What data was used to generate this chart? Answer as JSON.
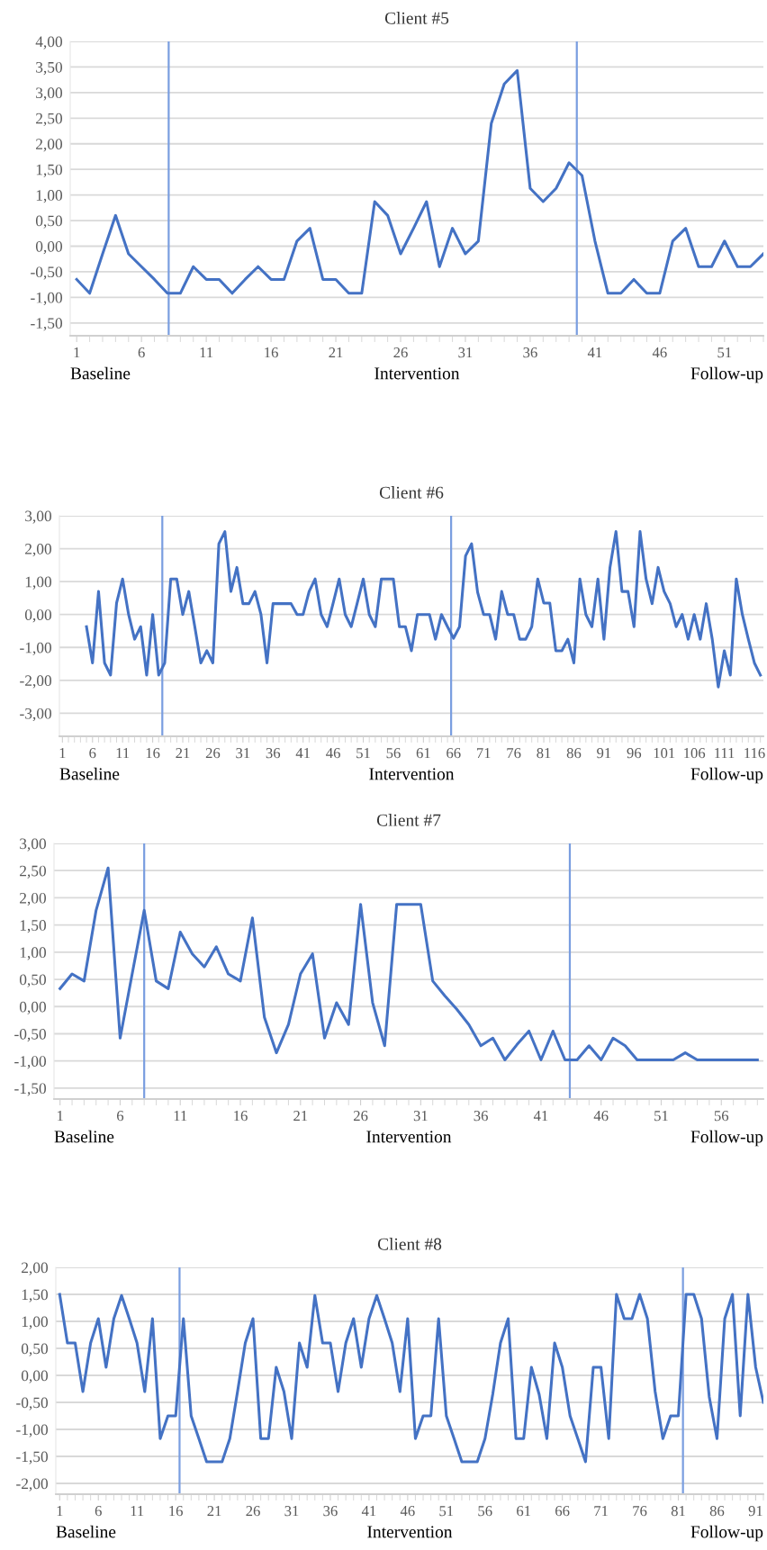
{
  "chart_data": [
    {
      "type": "line",
      "title": "Client #5",
      "color": "#4472c4",
      "grid": "y",
      "x": [
        1,
        2,
        3,
        4,
        5,
        6,
        7,
        8,
        9,
        10,
        11,
        12,
        13,
        14,
        15,
        16,
        17,
        18,
        19,
        20,
        21,
        22,
        23,
        24,
        25,
        26,
        27,
        28,
        29,
        30,
        31,
        32,
        33,
        34,
        35,
        36,
        37,
        38,
        39,
        40,
        41,
        42,
        43,
        44,
        45,
        46,
        47,
        48,
        49,
        50,
        51,
        52,
        53,
        54
      ],
      "values": [
        -0.65,
        -0.92,
        -0.15,
        0.6,
        -0.15,
        -0.4,
        -0.65,
        -0.92,
        -0.92,
        -0.4,
        -0.65,
        -0.65,
        -0.92,
        -0.65,
        -0.4,
        -0.65,
        -0.65,
        0.1,
        0.35,
        -0.65,
        -0.65,
        -0.92,
        -0.92,
        0.87,
        0.6,
        -0.15,
        0.35,
        0.87,
        -0.4,
        0.35,
        -0.15,
        0.1,
        2.4,
        3.17,
        3.43,
        1.13,
        0.87,
        1.13,
        1.63,
        1.38,
        0.1,
        -0.92,
        -0.92,
        -0.65,
        -0.92,
        -0.92,
        0.1,
        0.35,
        -0.4,
        -0.4,
        0.1,
        -0.4,
        -0.4,
        -0.15
      ],
      "xlim": [
        0.5,
        54
      ],
      "xticks": [
        1,
        6,
        11,
        16,
        21,
        26,
        31,
        36,
        41,
        46,
        51
      ],
      "ylim": [
        -1.75,
        4.0
      ],
      "yticks": [
        {
          "value": -1.5,
          "label": "-1,50"
        },
        {
          "value": -1.0,
          "label": "-1,00"
        },
        {
          "value": -0.5,
          "label": "-0,50"
        },
        {
          "value": 0,
          "label": "0,00"
        },
        {
          "value": 0.5,
          "label": "0,50"
        },
        {
          "value": 1.0,
          "label": "1,00"
        },
        {
          "value": 1.5,
          "label": "1,50"
        },
        {
          "value": 2.0,
          "label": "2,00"
        },
        {
          "value": 2.5,
          "label": "2,50"
        },
        {
          "value": 3.0,
          "label": "3,00"
        },
        {
          "value": 3.5,
          "label": "3,50"
        },
        {
          "value": 4.0,
          "label": "4,00"
        }
      ],
      "ref_lines": [
        {
          "axis": "x",
          "value": 8.1,
          "color": "#7a9ee0"
        },
        {
          "axis": "x",
          "value": 39.6,
          "color": "#7a9ee0"
        }
      ],
      "annotations": [
        "Baseline",
        "Intervention",
        "Follow-up"
      ]
    },
    {
      "type": "line",
      "title": "Client #6",
      "color": "#4472c4",
      "grid": "y",
      "x": [
        5,
        6,
        7,
        8,
        9,
        10,
        11,
        12,
        13,
        14,
        15,
        16,
        17,
        18,
        19,
        20,
        21,
        22,
        23,
        24,
        25,
        26,
        27,
        28,
        29,
        30,
        31,
        32,
        33,
        34,
        35,
        36,
        37,
        38,
        39,
        40,
        41,
        42,
        43,
        44,
        45,
        46,
        47,
        48,
        49,
        50,
        51,
        52,
        53,
        54,
        55,
        56,
        57,
        58,
        59,
        60,
        61,
        62,
        63,
        64,
        65,
        66,
        67,
        68,
        69,
        70,
        71,
        72,
        73,
        74,
        75,
        76,
        77,
        78,
        79,
        80,
        81,
        82,
        83,
        84,
        85,
        86,
        87,
        88,
        89,
        90,
        91,
        92,
        93,
        94,
        95,
        96,
        97,
        98,
        99,
        100,
        101,
        102,
        103,
        104,
        105,
        106,
        107,
        108,
        109,
        110,
        111,
        112,
        113,
        114,
        115,
        116,
        117
      ],
      "values": [
        -0.37,
        -1.47,
        0.7,
        -1.47,
        -1.84,
        0.35,
        1.08,
        0.0,
        -0.75,
        -0.37,
        -1.84,
        0.0,
        -1.84,
        -1.47,
        1.08,
        1.08,
        0.0,
        0.7,
        -0.37,
        -1.47,
        -1.1,
        -1.47,
        2.15,
        2.52,
        0.7,
        1.43,
        0.33,
        0.33,
        0.7,
        0.0,
        -1.47,
        0.33,
        0.33,
        0.33,
        0.33,
        0.0,
        0.0,
        0.7,
        1.08,
        0.0,
        -0.37,
        0.35,
        1.08,
        0.0,
        -0.37,
        0.35,
        1.08,
        0.0,
        -0.37,
        1.08,
        1.08,
        1.08,
        -0.37,
        -0.37,
        -1.1,
        0.0,
        0.0,
        0.0,
        -0.75,
        0.0,
        -0.37,
        -0.72,
        -0.37,
        1.78,
        2.15,
        0.68,
        0.0,
        0.0,
        -0.75,
        0.7,
        0.0,
        0.0,
        -0.75,
        -0.75,
        -0.37,
        1.08,
        0.35,
        0.35,
        -1.1,
        -1.1,
        -0.75,
        -1.47,
        1.08,
        0.0,
        -0.37,
        1.08,
        -0.75,
        1.43,
        2.52,
        0.7,
        0.7,
        -0.37,
        2.52,
        1.08,
        0.33,
        1.43,
        0.7,
        0.33,
        -0.37,
        0.0,
        -0.75,
        0.0,
        -0.75,
        0.33,
        -0.75,
        -2.2,
        -1.1,
        -1.84,
        1.08,
        0.0,
        -0.75,
        -1.47,
        -1.84
      ],
      "xlim": [
        0.5,
        117.5
      ],
      "xticks": [
        1,
        6,
        11,
        16,
        21,
        26,
        31,
        36,
        41,
        46,
        51,
        56,
        61,
        66,
        71,
        76,
        81,
        86,
        91,
        96,
        101,
        106,
        111,
        116
      ],
      "ylim": [
        -3.7,
        3.0
      ],
      "yticks": [
        {
          "value": -3,
          "label": "-3,00"
        },
        {
          "value": -2,
          "label": "-2,00"
        },
        {
          "value": -1,
          "label": "-1,00"
        },
        {
          "value": 0,
          "label": "0,00"
        },
        {
          "value": 1,
          "label": "1,00"
        },
        {
          "value": 2,
          "label": "2,00"
        },
        {
          "value": 3,
          "label": "3,00"
        }
      ],
      "ref_lines": [
        {
          "axis": "x",
          "value": 17.6,
          "color": "#7a9ee0"
        },
        {
          "axis": "x",
          "value": 65.6,
          "color": "#7a9ee0"
        }
      ],
      "annotations": [
        "Baseline",
        "Intervention",
        "Follow-up"
      ]
    },
    {
      "type": "line",
      "title": "Client #7",
      "color": "#4472c4",
      "grid": "y",
      "x": [
        1,
        2,
        3,
        4,
        5,
        6,
        7,
        8,
        9,
        10,
        11,
        12,
        13,
        14,
        15,
        16,
        17,
        18,
        19,
        20,
        21,
        22,
        23,
        24,
        25,
        26,
        27,
        28,
        29,
        30,
        31,
        32,
        33,
        34,
        35,
        36,
        37,
        38,
        39,
        40,
        41,
        42,
        43,
        44,
        45,
        46,
        47,
        48,
        49,
        50,
        51,
        52,
        53,
        54,
        55,
        56,
        57,
        58,
        59
      ],
      "values": [
        0.33,
        0.6,
        0.47,
        1.77,
        2.55,
        -0.58,
        0.6,
        1.77,
        0.47,
        0.33,
        1.37,
        0.97,
        0.73,
        1.1,
        0.6,
        0.47,
        1.63,
        -0.2,
        -0.85,
        -0.33,
        0.6,
        0.97,
        -0.58,
        0.07,
        -0.33,
        1.88,
        0.07,
        -0.72,
        1.88,
        1.88,
        1.88,
        0.47,
        0.2,
        -0.05,
        -0.33,
        -0.72,
        -0.58,
        -0.98,
        -0.7,
        -0.45,
        -0.98,
        -0.45,
        -0.98,
        -0.98,
        -0.72,
        -0.98,
        -0.58,
        -0.72,
        -0.98,
        -0.98,
        -0.98,
        -0.98,
        -0.85,
        -0.98,
        -0.98,
        -0.98,
        -0.98,
        -0.98,
        -0.98
      ],
      "xlim": [
        0.5,
        59.5
      ],
      "xticks": [
        1,
        6,
        11,
        16,
        21,
        26,
        31,
        36,
        41,
        46,
        51,
        56
      ],
      "ylim": [
        -1.7,
        3.0
      ],
      "yticks": [
        {
          "value": -1.5,
          "label": "-1,50"
        },
        {
          "value": -1.0,
          "label": "-1,00"
        },
        {
          "value": -0.5,
          "label": "-0,50"
        },
        {
          "value": 0,
          "label": "0,00"
        },
        {
          "value": 0.5,
          "label": "0,50"
        },
        {
          "value": 1.0,
          "label": "1,00"
        },
        {
          "value": 1.5,
          "label": "1,50"
        },
        {
          "value": 2.0,
          "label": "2,00"
        },
        {
          "value": 2.5,
          "label": "2,50"
        },
        {
          "value": 3.0,
          "label": "3,00"
        }
      ],
      "ref_lines": [
        {
          "axis": "x",
          "value": 8.0,
          "color": "#7a9ee0"
        },
        {
          "axis": "x",
          "value": 43.4,
          "color": "#7a9ee0"
        }
      ],
      "annotations": [
        "Baseline",
        "Intervention",
        "Follow-up"
      ]
    },
    {
      "type": "line",
      "title": "Client #8",
      "color": "#4472c4",
      "grid": "y",
      "x": [
        1,
        2,
        3,
        4,
        5,
        6,
        7,
        8,
        9,
        10,
        11,
        12,
        13,
        14,
        15,
        16,
        17,
        18,
        19,
        20,
        21,
        22,
        23,
        24,
        25,
        26,
        27,
        28,
        29,
        30,
        31,
        32,
        33,
        34,
        35,
        36,
        37,
        38,
        39,
        40,
        41,
        42,
        43,
        44,
        45,
        46,
        47,
        48,
        49,
        50,
        51,
        52,
        53,
        54,
        55,
        56,
        57,
        58,
        59,
        60,
        61,
        62,
        63,
        64,
        65,
        66,
        67,
        68,
        69,
        70,
        71,
        72,
        73,
        74,
        75,
        76,
        77,
        78,
        79,
        80,
        81,
        82,
        83,
        84,
        85,
        86,
        87,
        88,
        89,
        90,
        91,
        92
      ],
      "values": [
        1.5,
        0.6,
        0.6,
        -0.3,
        0.6,
        1.05,
        0.15,
        1.05,
        1.48,
        1.05,
        0.6,
        -0.3,
        1.05,
        -1.17,
        -0.75,
        -0.75,
        1.05,
        -0.75,
        -1.17,
        -1.6,
        -1.6,
        -1.6,
        -1.17,
        -0.3,
        0.6,
        1.05,
        -1.17,
        -1.17,
        0.15,
        -0.3,
        -1.17,
        0.6,
        0.15,
        1.48,
        0.6,
        0.6,
        -0.3,
        0.6,
        1.05,
        0.15,
        1.05,
        1.48,
        1.05,
        0.6,
        -0.3,
        1.05,
        -1.17,
        -0.75,
        -0.75,
        1.05,
        -0.75,
        -1.17,
        -1.6,
        -1.6,
        -1.6,
        -1.17,
        -0.35,
        0.6,
        1.05,
        -1.17,
        -1.17,
        0.15,
        -0.35,
        -1.17,
        0.6,
        0.15,
        -0.75,
        -1.17,
        -1.6,
        0.15,
        0.15,
        -1.17,
        1.5,
        1.05,
        1.05,
        1.5,
        1.05,
        -0.3,
        -1.17,
        -0.75,
        -0.75,
        1.5,
        1.5,
        1.05,
        -0.4,
        -1.17,
        1.05,
        1.5,
        -0.75,
        1.5,
        0.15,
        -0.5
      ],
      "xlim": [
        0.5,
        92
      ],
      "xticks": [
        1,
        6,
        11,
        16,
        21,
        26,
        31,
        36,
        41,
        46,
        51,
        56,
        61,
        66,
        71,
        76,
        81,
        86,
        91
      ],
      "ylim": [
        -2.2,
        2.0
      ],
      "yticks": [
        {
          "value": -2.0,
          "label": "-2,00"
        },
        {
          "value": -1.5,
          "label": "-1,50"
        },
        {
          "value": -1.0,
          "label": "-1,00"
        },
        {
          "value": -0.5,
          "label": "-0,50"
        },
        {
          "value": 0,
          "label": "0,00"
        },
        {
          "value": 0.5,
          "label": "0,50"
        },
        {
          "value": 1.0,
          "label": "1,00"
        },
        {
          "value": 1.5,
          "label": "1,50"
        },
        {
          "value": 2.0,
          "label": "2,00"
        }
      ],
      "ref_lines": [
        {
          "axis": "x",
          "value": 16.5,
          "color": "#7a9ee0"
        },
        {
          "axis": "x",
          "value": 81.6,
          "color": "#7a9ee0"
        }
      ],
      "annotations": [
        "Baseline",
        "Intervention",
        "Follow-up"
      ]
    }
  ]
}
